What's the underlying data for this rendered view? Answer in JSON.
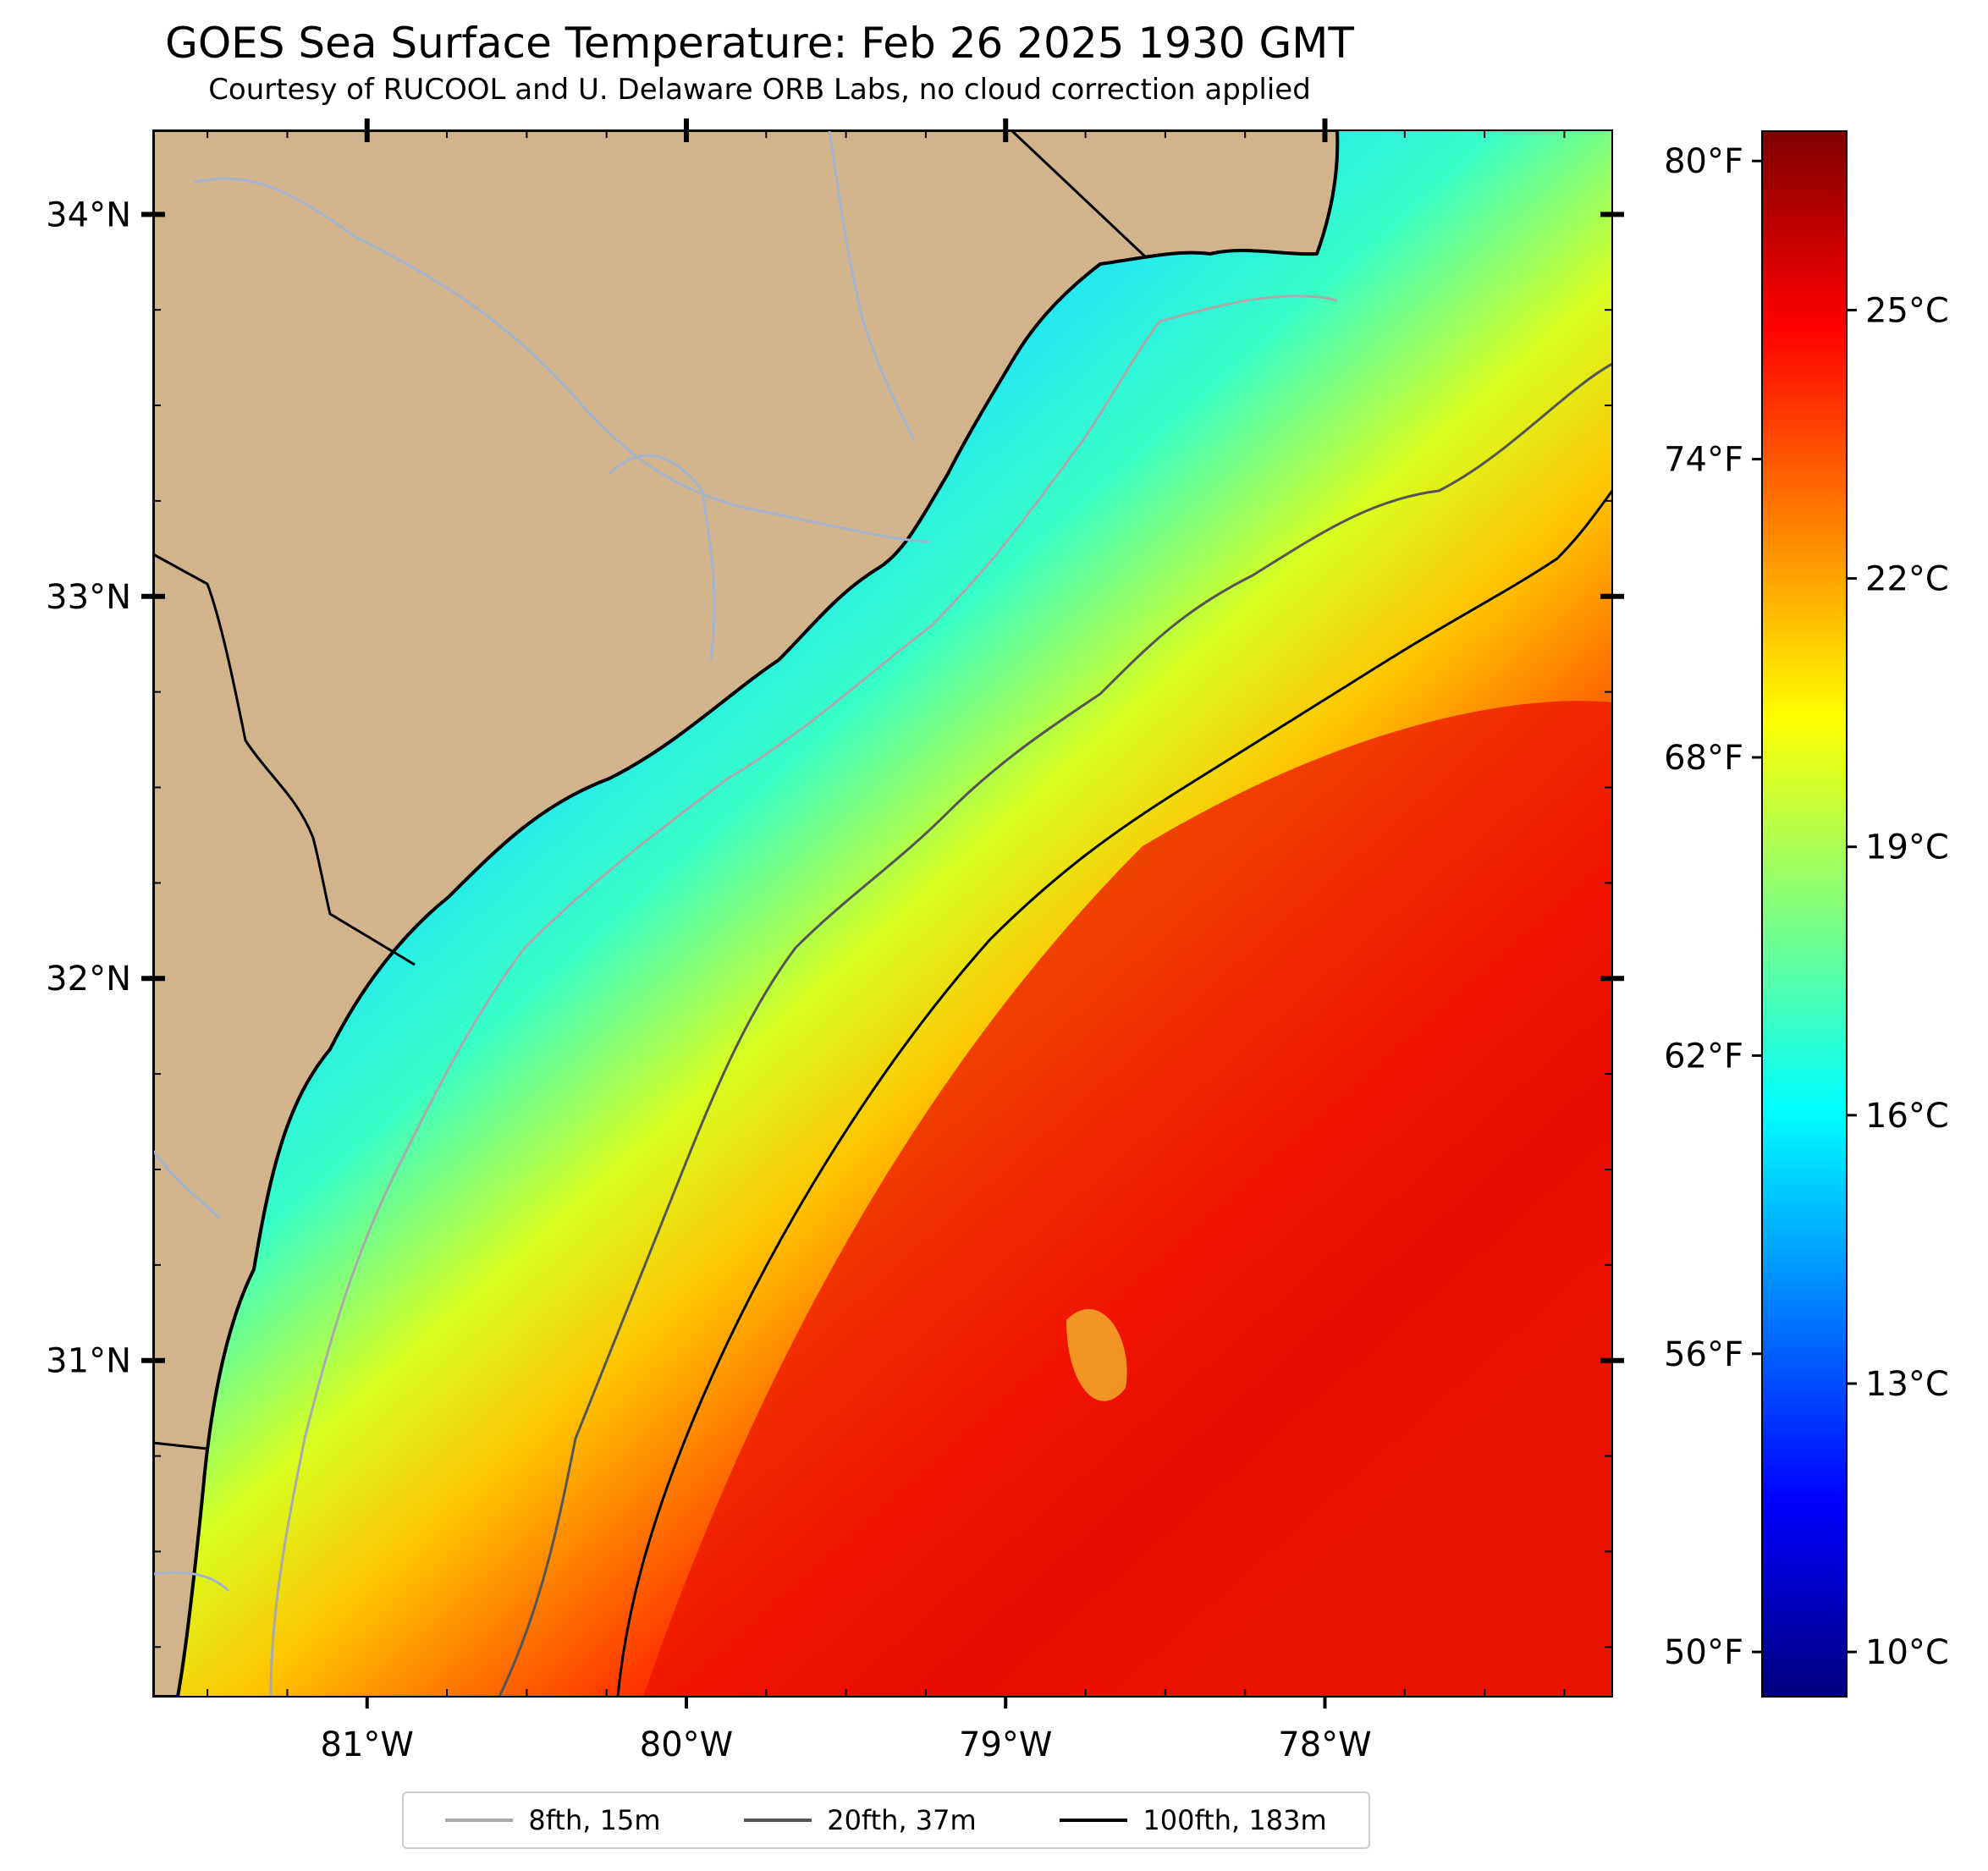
{
  "title": "GOES Sea Surface Temperature: Feb 26 2025 1930 GMT",
  "subtitle": "Courtesy of RUCOOL and U. Delaware ORB Labs, no cloud correction applied",
  "map": {
    "lon_range": [
      -81.67,
      -77.1
    ],
    "lat_range": [
      30.12,
      34.22
    ],
    "lon_ticks": [
      {
        "value": -81,
        "label": "81°W"
      },
      {
        "value": -80,
        "label": "80°W"
      },
      {
        "value": -79,
        "label": "79°W"
      },
      {
        "value": -78,
        "label": "78°W"
      }
    ],
    "lat_ticks": [
      {
        "value": 34,
        "label": "34°N"
      },
      {
        "value": 33,
        "label": "33°N"
      },
      {
        "value": 32,
        "label": "32°N"
      },
      {
        "value": 31,
        "label": "31°N"
      }
    ],
    "land_color": "#d2b48c",
    "coastline_color": "#000000",
    "river_color": "#a3b3cc"
  },
  "colorbar": {
    "colormap": "jet",
    "range_c": [
      9.5,
      27.0
    ],
    "celsius_ticks": [
      {
        "value": 10,
        "label": "10°C"
      },
      {
        "value": 13,
        "label": "13°C"
      },
      {
        "value": 16,
        "label": "16°C"
      },
      {
        "value": 19,
        "label": "19°C"
      },
      {
        "value": 22,
        "label": "22°C"
      },
      {
        "value": 25,
        "label": "25°C"
      }
    ],
    "fahrenheit_ticks": [
      {
        "value": 50,
        "label": "50°F"
      },
      {
        "value": 56,
        "label": "56°F"
      },
      {
        "value": 62,
        "label": "62°F"
      },
      {
        "value": 68,
        "label": "68°F"
      },
      {
        "value": 74,
        "label": "74°F"
      },
      {
        "value": 80,
        "label": "80°F"
      }
    ]
  },
  "legend": [
    {
      "label": "8fth, 15m",
      "color": "#aaaaaa"
    },
    {
      "label": "20fth, 37m",
      "color": "#555555"
    },
    {
      "label": "100fth, 183m",
      "color": "#000000"
    }
  ]
}
